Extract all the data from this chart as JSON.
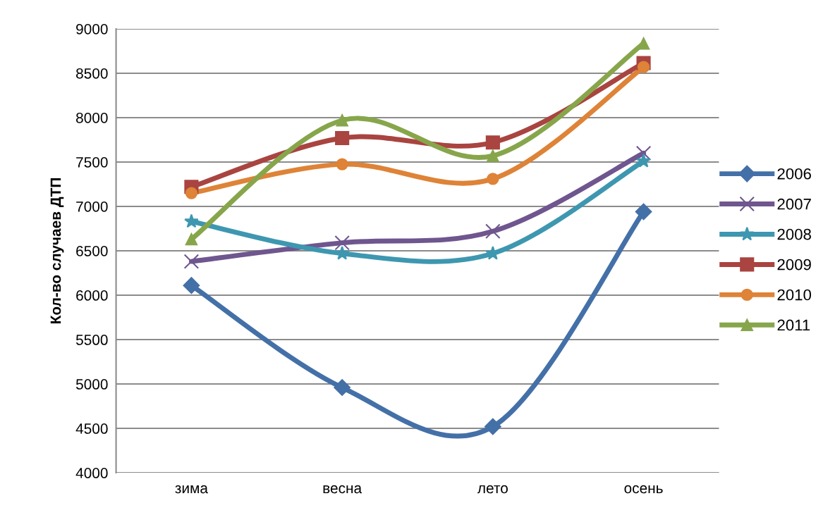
{
  "chart_data": {
    "type": "line",
    "ylabel": "Кол-во случаев ДТП",
    "categories": [
      "зима",
      "весна",
      "лето",
      "осень"
    ],
    "series": [
      {
        "name": "2006",
        "color": "#4470a8",
        "marker": "diamond",
        "values": [
          6110,
          4960,
          4520,
          6940
        ]
      },
      {
        "name": "2007",
        "color": "#6f568f",
        "marker": "cross",
        "values": [
          6380,
          6590,
          6720,
          7600
        ]
      },
      {
        "name": "2008",
        "color": "#3e97b0",
        "marker": "star",
        "values": [
          6830,
          6470,
          6470,
          7510
        ]
      },
      {
        "name": "2009",
        "color": "#a94440",
        "marker": "square",
        "values": [
          7220,
          7770,
          7720,
          8615
        ]
      },
      {
        "name": "2010",
        "color": "#de8337",
        "marker": "circle",
        "values": [
          7150,
          7475,
          7310,
          8570
        ]
      },
      {
        "name": "2011",
        "color": "#87a64b",
        "marker": "triangle",
        "values": [
          6630,
          7970,
          7570,
          8835
        ]
      }
    ],
    "ylim": [
      4000,
      9000
    ],
    "yticks": [
      4000,
      4500,
      5000,
      5500,
      6000,
      6500,
      7000,
      7500,
      8000,
      8500,
      9000
    ],
    "grid": "y",
    "legend": "right",
    "line_style": "solid"
  }
}
